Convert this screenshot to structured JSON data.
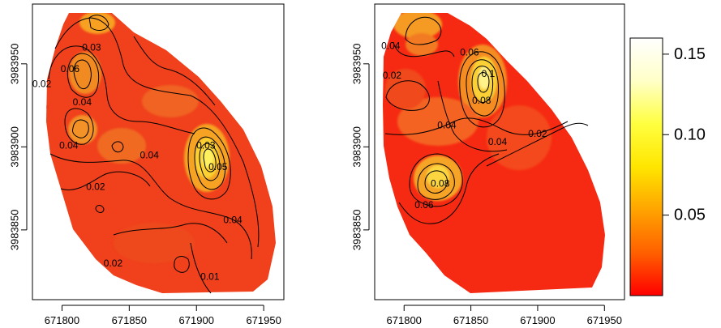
{
  "chart_data": [
    {
      "type": "heatmap",
      "subtype": "filled-raster-with-contours",
      "xlim": [
        671778,
        671965
      ],
      "ylim": [
        3983808,
        3983986
      ],
      "x_ticks": [
        671800,
        671850,
        671900,
        671950
      ],
      "y_ticks": [
        3983850,
        3983900,
        3983950
      ],
      "x_tick_labels": [
        "671800",
        "671850",
        "671900",
        "671950"
      ],
      "y_tick_labels": [
        "3983850",
        "3983900",
        "3983950"
      ],
      "grid": false,
      "contour_labels": [
        {
          "text": "0.03",
          "x": 671822,
          "y": 3983960
        },
        {
          "text": "0.06",
          "x": 671806,
          "y": 3983947
        },
        {
          "text": "0.02",
          "x": 671785,
          "y": 3983938
        },
        {
          "text": "0.04",
          "x": 671815,
          "y": 3983927
        },
        {
          "text": "0.04",
          "x": 671805,
          "y": 3983901
        },
        {
          "text": "0.04",
          "x": 671865,
          "y": 3983895
        },
        {
          "text": "0.02",
          "x": 671825,
          "y": 3983876
        },
        {
          "text": "0.03",
          "x": 671907,
          "y": 3983901
        },
        {
          "text": "0.05",
          "x": 671916,
          "y": 3983888
        },
        {
          "text": "0.04",
          "x": 671927,
          "y": 3983856
        },
        {
          "text": "0.02",
          "x": 671838,
          "y": 3983830
        },
        {
          "text": "0.01",
          "x": 671910,
          "y": 3983822
        }
      ]
    },
    {
      "type": "heatmap",
      "subtype": "filled-raster-with-contours",
      "xlim": [
        671778,
        671965
      ],
      "ylim": [
        3983808,
        3983986
      ],
      "x_ticks": [
        671800,
        671850,
        671900,
        671950
      ],
      "y_ticks": [
        3983850,
        3983900,
        3983950
      ],
      "x_tick_labels": [
        "671800",
        "671850",
        "671900",
        "671950"
      ],
      "y_tick_labels": [
        "3983850",
        "3983900",
        "3983950"
      ],
      "grid": false,
      "contour_labels": [
        {
          "text": "0.04",
          "x": 671790,
          "y": 3983961
        },
        {
          "text": "0.02",
          "x": 671791,
          "y": 3983943
        },
        {
          "text": "0.06",
          "x": 671849,
          "y": 3983957
        },
        {
          "text": "0.1",
          "x": 671863,
          "y": 3983944
        },
        {
          "text": "0.08",
          "x": 671858,
          "y": 3983928
        },
        {
          "text": "0.04",
          "x": 671832,
          "y": 3983913
        },
        {
          "text": "0.04",
          "x": 671870,
          "y": 3983903
        },
        {
          "text": "0.02",
          "x": 671900,
          "y": 3983908
        },
        {
          "text": "0.08",
          "x": 671827,
          "y": 3983878
        },
        {
          "text": "0.06",
          "x": 671815,
          "y": 3983865
        }
      ]
    }
  ],
  "colorbar": {
    "range": [
      0,
      0.16
    ],
    "ticks": [
      0.05,
      0.1,
      0.15
    ],
    "tick_labels": [
      "0.05",
      "0.10",
      "0.15"
    ],
    "colors": [
      "#ff0000",
      "#ff6000",
      "#ffa400",
      "#ffe600",
      "#ffff40",
      "#ffffc8",
      "#ffffff"
    ]
  }
}
